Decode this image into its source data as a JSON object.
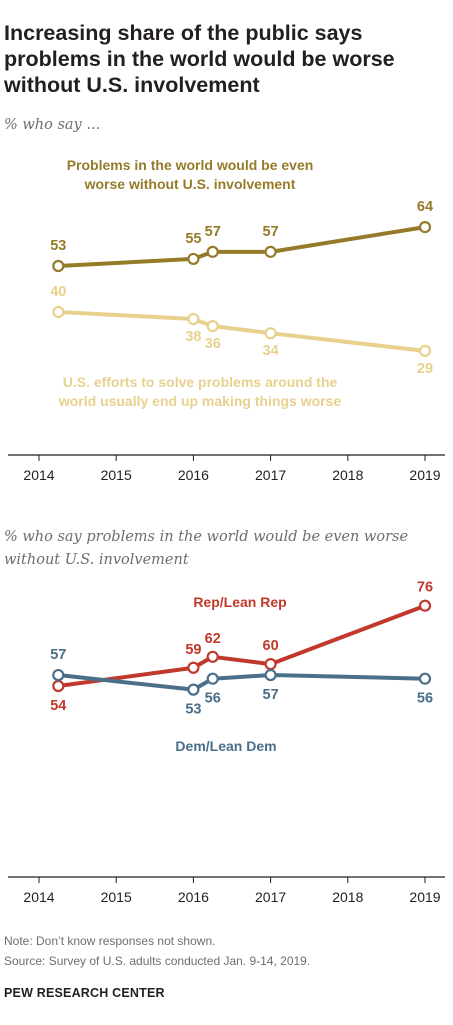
{
  "title": "Increasing share of the public says problems in the world would be worse without U.S. involvement",
  "colors": {
    "gold": "#957B29",
    "lightgold": "#E8D08D",
    "red": "#C1392B",
    "blue": "#4A6F8A",
    "axis": "#231f20"
  },
  "chart_data": [
    {
      "type": "line",
      "subtitle": "% who say ...",
      "xlim": [
        2014,
        2019
      ],
      "ylim": [
        0,
        100
      ],
      "xticks": [
        "2014",
        "2015",
        "2016",
        "2017",
        "2018",
        "2019"
      ],
      "series": [
        {
          "name": "Problems in the world would be even worse without U.S. involvement",
          "name_lines": [
            "Problems in the world would be even",
            "worse without U.S. involvement"
          ],
          "color_key": "gold",
          "points": [
            {
              "x": 2014.25,
              "y": 53,
              "label": "53"
            },
            {
              "x": 2016.0,
              "y": 55,
              "label": "55"
            },
            {
              "x": 2016.25,
              "y": 57,
              "label": "57"
            },
            {
              "x": 2017.0,
              "y": 57,
              "label": "57"
            },
            {
              "x": 2019.0,
              "y": 64,
              "label": "64"
            }
          ]
        },
        {
          "name": "U.S. efforts to solve problems around the world usually end up making things worse",
          "name_lines": [
            "U.S. efforts to solve problems around the",
            "world usually end up making things worse"
          ],
          "color_key": "lightgold",
          "points": [
            {
              "x": 2014.25,
              "y": 40,
              "label": "40"
            },
            {
              "x": 2016.0,
              "y": 38,
              "label": "38"
            },
            {
              "x": 2016.25,
              "y": 36,
              "label": "36"
            },
            {
              "x": 2017.0,
              "y": 34,
              "label": "34"
            },
            {
              "x": 2019.0,
              "y": 29,
              "label": "29"
            }
          ]
        }
      ]
    },
    {
      "type": "line",
      "subtitle": "% who say problems in the world would be even worse without U.S. involvement",
      "xlim": [
        2014,
        2019
      ],
      "ylim": [
        0,
        100
      ],
      "xticks": [
        "2014",
        "2015",
        "2016",
        "2017",
        "2018",
        "2019"
      ],
      "series": [
        {
          "name": "Rep/Lean Rep",
          "name_lines": [
            "Rep/Lean Rep"
          ],
          "color_key": "red",
          "points": [
            {
              "x": 2014.25,
              "y": 54,
              "label": "54"
            },
            {
              "x": 2016.0,
              "y": 59,
              "label": "59"
            },
            {
              "x": 2016.25,
              "y": 62,
              "label": "62"
            },
            {
              "x": 2017.0,
              "y": 60,
              "label": "60"
            },
            {
              "x": 2019.0,
              "y": 76,
              "label": "76"
            }
          ]
        },
        {
          "name": "Dem/Lean Dem",
          "name_lines": [
            "Dem/Lean Dem"
          ],
          "color_key": "blue",
          "points": [
            {
              "x": 2014.25,
              "y": 57,
              "label": "57"
            },
            {
              "x": 2016.0,
              "y": 53,
              "label": "53"
            },
            {
              "x": 2016.25,
              "y": 56,
              "label": "56"
            },
            {
              "x": 2017.0,
              "y": 57,
              "label": "57"
            },
            {
              "x": 2019.0,
              "y": 56,
              "label": "56"
            }
          ]
        }
      ]
    }
  ],
  "notes": {
    "note": "Note: Don’t know responses not shown.",
    "source": "Source: Survey of U.S. adults conducted Jan. 9-14, 2019."
  },
  "brand": "PEW RESEARCH CENTER"
}
